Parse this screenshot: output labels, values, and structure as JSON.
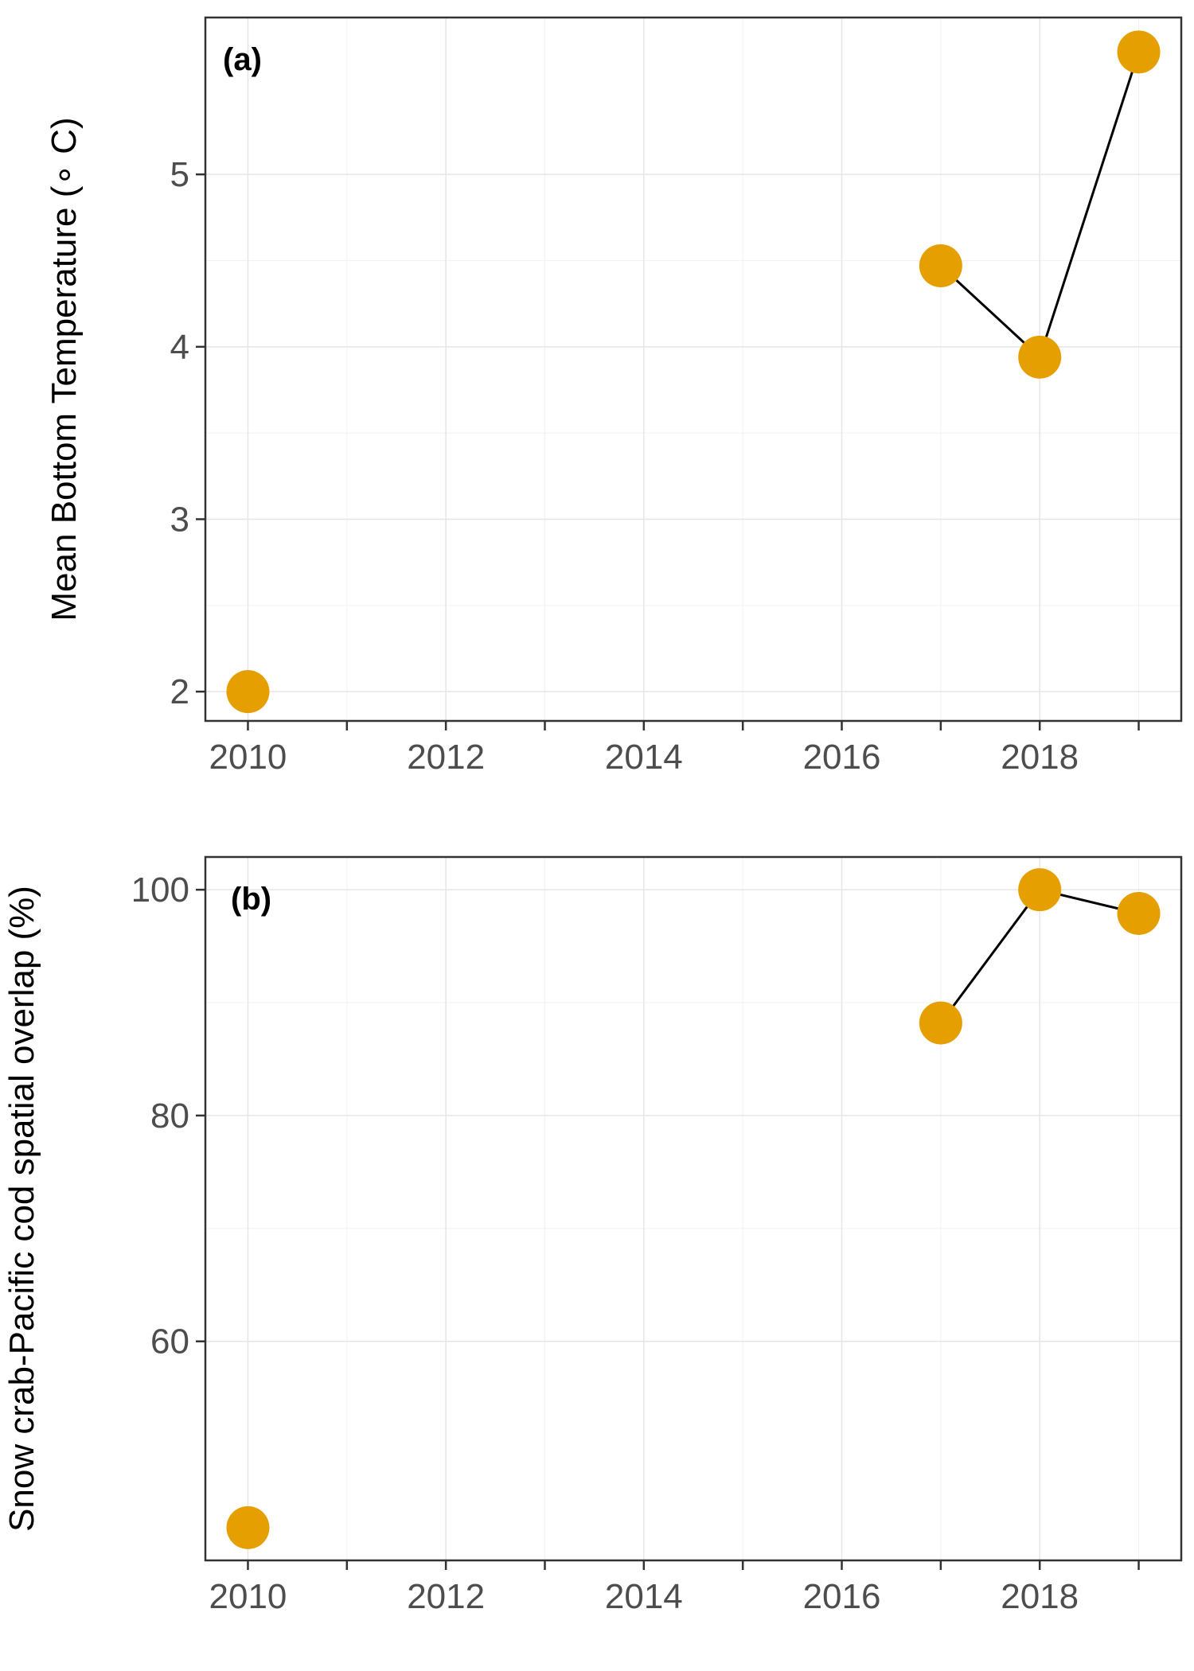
{
  "chart_data": [
    {
      "type": "line",
      "panel_label": "(a)",
      "title": "",
      "xlabel": "",
      "ylabel": "Mean Bottom Temperature (∘ C)",
      "x": [
        2010,
        2017,
        2018,
        2019
      ],
      "y": [
        2.0,
        4.47,
        3.94,
        5.71
      ],
      "line_segments_from_index": 1,
      "xlim": [
        2009.57,
        2019.43
      ],
      "ylim": [
        1.83,
        5.91
      ],
      "xticks": [
        2010,
        2011,
        2012,
        2013,
        2014,
        2015,
        2016,
        2017,
        2018,
        2019
      ],
      "xtick_labels": [
        "2010",
        "2012",
        "2014",
        "2016",
        "2018"
      ],
      "xtick_label_values": [
        2010,
        2012,
        2014,
        2016,
        2018
      ],
      "yticks": [
        2,
        3,
        4,
        5
      ],
      "ytick_labels": [
        "2",
        "3",
        "4",
        "5"
      ],
      "point_color": "#E69F00",
      "line_color": "#000000",
      "grid": true,
      "legend": "none"
    },
    {
      "type": "line",
      "panel_label": "(b)",
      "title": "",
      "xlabel": "",
      "ylabel": "Snow crab-Pacific cod spatial overlap (%)",
      "x": [
        2010,
        2017,
        2018,
        2019
      ],
      "y": [
        43.5,
        88.2,
        100.0,
        97.9
      ],
      "line_segments_from_index": 1,
      "xlim": [
        2009.57,
        2019.43
      ],
      "ylim": [
        40.6,
        102.9
      ],
      "xticks": [
        2010,
        2011,
        2012,
        2013,
        2014,
        2015,
        2016,
        2017,
        2018,
        2019
      ],
      "xtick_labels": [
        "2010",
        "2012",
        "2014",
        "2016",
        "2018"
      ],
      "xtick_label_values": [
        2010,
        2012,
        2014,
        2016,
        2018
      ],
      "yticks": [
        60,
        80,
        100
      ],
      "ytick_labels": [
        "60",
        "80",
        "100"
      ],
      "point_color": "#E69F00",
      "line_color": "#000000",
      "grid": true,
      "legend": "none"
    }
  ]
}
